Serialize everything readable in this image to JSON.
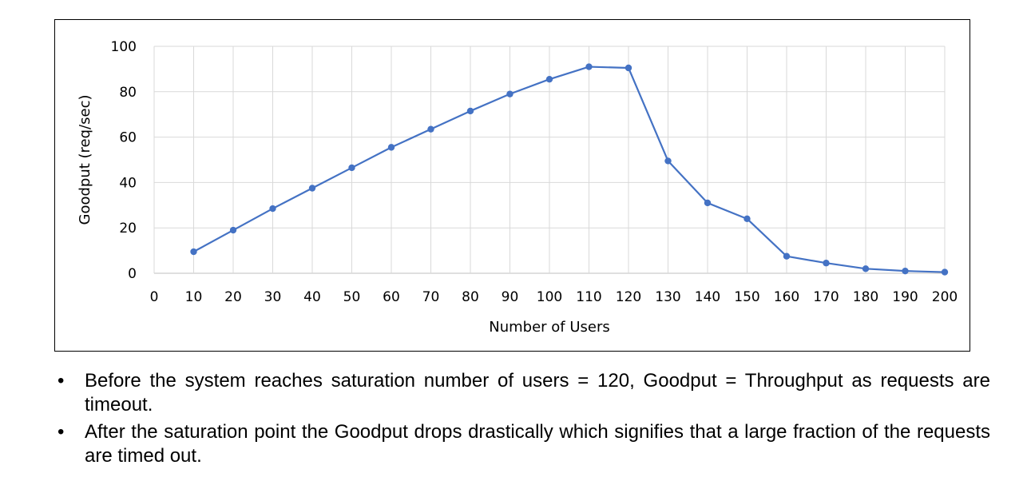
{
  "chart_data": {
    "type": "line",
    "xlabel": "Number of Users",
    "ylabel": "Goodput (req/sec)",
    "x_ticks": [
      "0",
      "10",
      "20",
      "30",
      "40",
      "50",
      "60",
      "70",
      "80",
      "90",
      "100",
      "110",
      "120",
      "130",
      "140",
      "150",
      "160",
      "170",
      "180",
      "190",
      "200"
    ],
    "y_ticks": [
      "0",
      "20",
      "40",
      "60",
      "80",
      "100"
    ],
    "xlim": [
      0,
      200
    ],
    "ylim": [
      0,
      100
    ],
    "grid": true,
    "legend": "none",
    "series": [
      {
        "color": "#4472C4",
        "x": [
          10,
          20,
          30,
          40,
          50,
          60,
          70,
          80,
          90,
          100,
          110,
          120,
          130,
          140,
          150,
          160,
          170,
          180,
          190,
          200
        ],
        "y": [
          9.5,
          19,
          28.5,
          37.5,
          46.5,
          55.5,
          63.5,
          71.5,
          79,
          85.5,
          91,
          90.5,
          49.5,
          31,
          24,
          7.5,
          4.5,
          2,
          1,
          0.5
        ]
      }
    ]
  },
  "notes": [
    "Before the system reaches saturation number of users = 120, Goodput = Throughput as requests are timeout.",
    "After the saturation point the Goodput drops drastically which signifies that a large fraction of the requests are timed out."
  ],
  "bullet_glyph": "•"
}
